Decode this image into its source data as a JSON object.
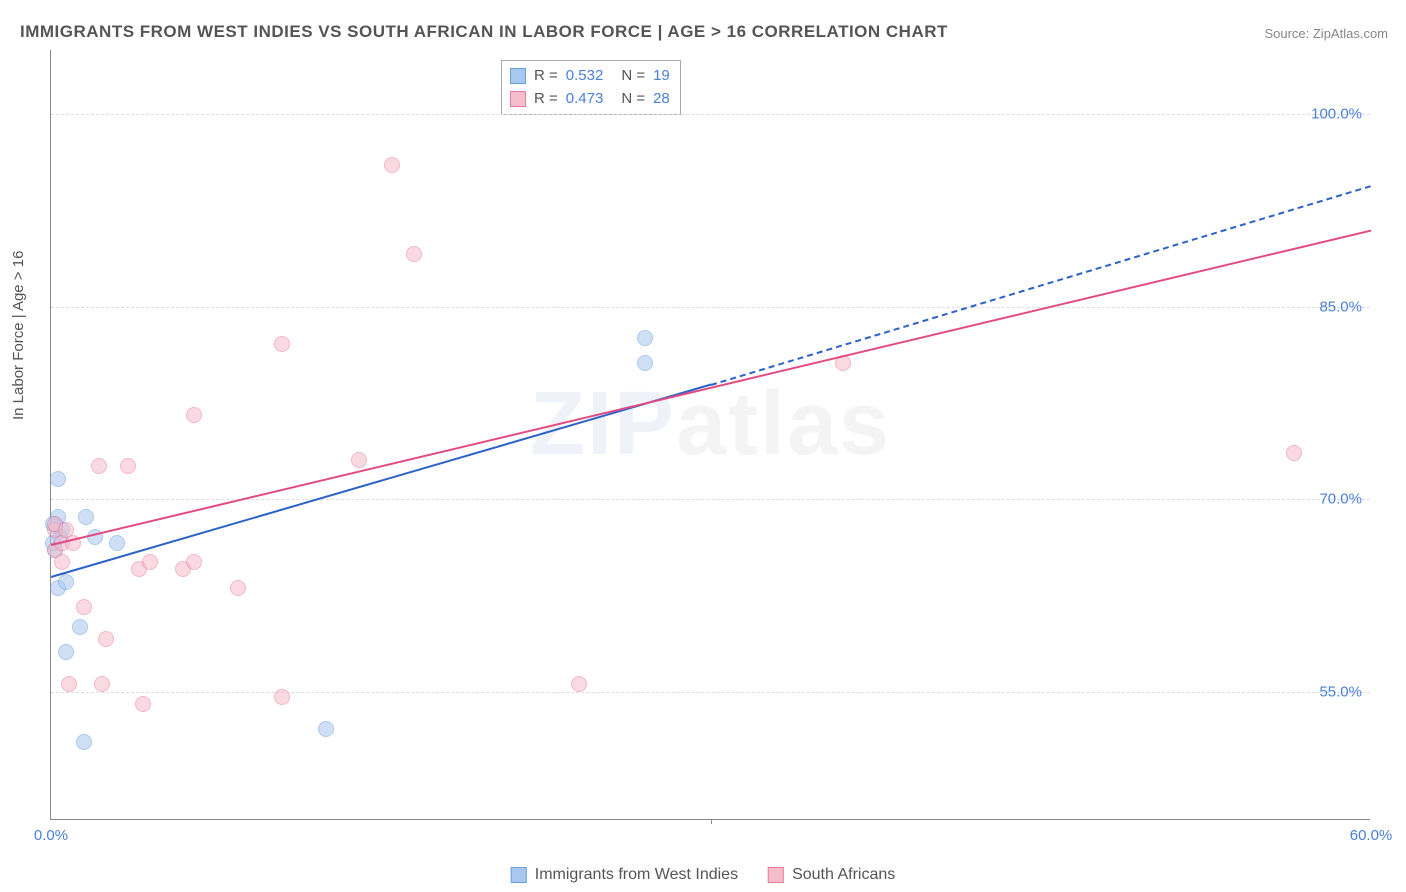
{
  "title": "IMMIGRANTS FROM WEST INDIES VS SOUTH AFRICAN IN LABOR FORCE | AGE > 16 CORRELATION CHART",
  "source": "Source: ZipAtlas.com",
  "watermark_a": "ZIP",
  "watermark_b": "atlas",
  "ylabel": "In Labor Force | Age > 16",
  "chart": {
    "type": "scatter",
    "background_color": "#ffffff",
    "grid_color": "#dddddd",
    "axis_color": "#888888",
    "xlim": [
      0,
      60
    ],
    "ylim": [
      45,
      105
    ],
    "yticks": [
      55.0,
      70.0,
      85.0,
      100.0
    ],
    "ytick_labels": [
      "55.0%",
      "70.0%",
      "85.0%",
      "100.0%"
    ],
    "xticks": [
      0,
      60
    ],
    "xtick_labels": [
      "0.0%",
      "60.0%"
    ],
    "xtick_minors": [
      30
    ],
    "marker_radius": 8,
    "marker_opacity": 0.55,
    "text_color_axis": "#4a7fd8",
    "text_color_label": "#555555"
  },
  "series": [
    {
      "name": "Immigrants from West Indies",
      "color_fill": "#a8c8f0",
      "color_stroke": "#6a9fde",
      "trend_color": "#2c62c9",
      "trend_dashed_extension": true,
      "trend": {
        "x1": 0,
        "y1": 64.0,
        "x2": 30,
        "y2": 79.0,
        "x2_ext": 60,
        "y2_ext": 94.5
      },
      "points": [
        {
          "x": 0.3,
          "y": 71.5
        },
        {
          "x": 0.3,
          "y": 68.5
        },
        {
          "x": 0.5,
          "y": 67.5
        },
        {
          "x": 0.4,
          "y": 67.0
        },
        {
          "x": 1.6,
          "y": 68.5
        },
        {
          "x": 0.3,
          "y": 63.0
        },
        {
          "x": 0.7,
          "y": 63.5
        },
        {
          "x": 2.0,
          "y": 67.0
        },
        {
          "x": 3.0,
          "y": 66.5
        },
        {
          "x": 1.3,
          "y": 60.0
        },
        {
          "x": 0.7,
          "y": 58.0
        },
        {
          "x": 1.5,
          "y": 51.0
        },
        {
          "x": 12.5,
          "y": 52.0
        },
        {
          "x": 27.0,
          "y": 82.5
        },
        {
          "x": 27.0,
          "y": 80.5
        },
        {
          "x": 0.2,
          "y": 66.0
        },
        {
          "x": 0.2,
          "y": 67.8
        },
        {
          "x": 0.1,
          "y": 68.0
        },
        {
          "x": 0.1,
          "y": 66.5
        }
      ]
    },
    {
      "name": "South Africans",
      "color_fill": "#f5bccc",
      "color_stroke": "#e87ca0",
      "trend_color": "#e14b81",
      "trend_dashed_extension": false,
      "trend": {
        "x1": 0,
        "y1": 66.5,
        "x2": 60,
        "y2": 91.0
      },
      "points": [
        {
          "x": 0.2,
          "y": 67.5
        },
        {
          "x": 0.2,
          "y": 66.0
        },
        {
          "x": 0.2,
          "y": 68.0
        },
        {
          "x": 0.5,
          "y": 66.5
        },
        {
          "x": 0.5,
          "y": 65.0
        },
        {
          "x": 1.0,
          "y": 66.5
        },
        {
          "x": 2.2,
          "y": 72.5
        },
        {
          "x": 3.5,
          "y": 72.5
        },
        {
          "x": 4.0,
          "y": 64.5
        },
        {
          "x": 6.0,
          "y": 64.5
        },
        {
          "x": 6.5,
          "y": 76.5
        },
        {
          "x": 8.5,
          "y": 63.0
        },
        {
          "x": 10.5,
          "y": 82.0
        },
        {
          "x": 14.0,
          "y": 73.0
        },
        {
          "x": 15.5,
          "y": 96.0
        },
        {
          "x": 16.5,
          "y": 89.0
        },
        {
          "x": 24.0,
          "y": 55.5
        },
        {
          "x": 36.0,
          "y": 80.5
        },
        {
          "x": 56.5,
          "y": 73.5
        },
        {
          "x": 1.5,
          "y": 61.5
        },
        {
          "x": 2.5,
          "y": 59.0
        },
        {
          "x": 0.8,
          "y": 55.5
        },
        {
          "x": 2.3,
          "y": 55.5
        },
        {
          "x": 4.2,
          "y": 54.0
        },
        {
          "x": 10.5,
          "y": 54.5
        },
        {
          "x": 4.5,
          "y": 65.0
        },
        {
          "x": 6.5,
          "y": 65.0
        },
        {
          "x": 0.7,
          "y": 67.5
        }
      ]
    }
  ],
  "stats_legend": {
    "rows": [
      {
        "swatch_fill": "#a8c8f0",
        "swatch_stroke": "#6a9fde",
        "r_label": "R =",
        "r_value": "0.532",
        "n_label": "N =",
        "n_value": "19"
      },
      {
        "swatch_fill": "#f5bccc",
        "swatch_stroke": "#e87ca0",
        "r_label": "R =",
        "r_value": "0.473",
        "n_label": "N =",
        "n_value": "28"
      }
    ]
  },
  "bottom_legend": {
    "items": [
      {
        "swatch_fill": "#a8c8f0",
        "swatch_stroke": "#6a9fde",
        "label": "Immigrants from West Indies"
      },
      {
        "swatch_fill": "#f5bccc",
        "swatch_stroke": "#e87ca0",
        "label": "South Africans"
      }
    ]
  }
}
